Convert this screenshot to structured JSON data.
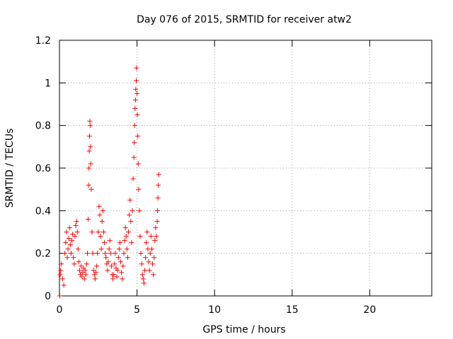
{
  "chart_data": {
    "type": "scatter",
    "title": "Day 076 of 2015, SRMTID for receiver atw2",
    "xlabel": "GPS time / hours",
    "ylabel": "SRMTID / TECUs",
    "xlim": [
      0,
      24
    ],
    "ylim": [
      0,
      1.2
    ],
    "xticks": [
      0,
      5,
      10,
      15,
      20
    ],
    "yticks": [
      0,
      0.2,
      0.4,
      0.6,
      0.8,
      1,
      1.2
    ],
    "xtick_labels": [
      "0",
      "5",
      "10",
      "15",
      "20"
    ],
    "ytick_labels": [
      "0",
      "0.2",
      "0.4",
      "0.6",
      "0.8",
      "1",
      "1.2"
    ],
    "grid": true,
    "marker": "+",
    "color": "#ff0000",
    "series": [
      {
        "name": "SRMTID",
        "x": [
          0.02,
          0.05,
          0.08,
          0.12,
          0.2,
          0.28,
          0.35,
          0.4,
          0.45,
          0.5,
          0.55,
          0.6,
          0.65,
          0.7,
          0.75,
          0.8,
          0.85,
          0.9,
          0.95,
          1.0,
          1.05,
          1.1,
          1.15,
          1.2,
          1.25,
          1.3,
          1.35,
          1.4,
          1.45,
          1.5,
          1.55,
          1.6,
          1.65,
          1.7,
          1.75,
          1.8,
          1.85,
          1.88,
          1.9,
          1.92,
          1.94,
          1.96,
          1.98,
          2.0,
          2.02,
          2.05,
          2.1,
          2.15,
          2.2,
          2.25,
          2.3,
          2.35,
          2.4,
          2.45,
          2.5,
          2.55,
          2.6,
          2.65,
          2.7,
          2.75,
          2.8,
          2.85,
          2.9,
          2.95,
          3.0,
          3.05,
          3.1,
          3.15,
          3.2,
          3.25,
          3.3,
          3.35,
          3.4,
          3.45,
          3.5,
          3.55,
          3.6,
          3.65,
          3.7,
          3.75,
          3.8,
          3.85,
          3.9,
          3.95,
          4.0,
          4.05,
          4.1,
          4.15,
          4.2,
          4.25,
          4.3,
          4.35,
          4.4,
          4.45,
          4.5,
          4.55,
          4.6,
          4.65,
          4.7,
          4.75,
          4.8,
          4.82,
          4.85,
          4.87,
          4.9,
          4.92,
          4.95,
          4.97,
          5.0,
          5.02,
          5.05,
          5.08,
          5.1,
          5.15,
          5.2,
          5.25,
          5.3,
          5.35,
          5.4,
          5.45,
          5.5,
          5.55,
          5.6,
          5.65,
          5.7,
          5.75,
          5.8,
          5.85,
          5.9,
          5.95,
          6.0,
          6.05,
          6.1,
          6.15,
          6.2,
          6.25,
          6.3,
          6.32,
          6.35,
          6.37,
          6.4
        ],
        "y": [
          0.0,
          0.1,
          0.12,
          0.15,
          0.08,
          0.05,
          0.2,
          0.25,
          0.3,
          0.18,
          0.22,
          0.27,
          0.32,
          0.24,
          0.2,
          0.26,
          0.29,
          0.18,
          0.15,
          0.28,
          0.33,
          0.35,
          0.3,
          0.22,
          0.16,
          0.12,
          0.1,
          0.14,
          0.09,
          0.11,
          0.13,
          0.08,
          0.12,
          0.1,
          0.15,
          0.2,
          0.36,
          0.52,
          0.6,
          0.68,
          0.75,
          0.82,
          0.8,
          0.7,
          0.62,
          0.5,
          0.3,
          0.2,
          0.12,
          0.1,
          0.08,
          0.11,
          0.14,
          0.2,
          0.3,
          0.42,
          0.38,
          0.28,
          0.22,
          0.35,
          0.4,
          0.3,
          0.25,
          0.2,
          0.18,
          0.15,
          0.12,
          0.16,
          0.22,
          0.26,
          0.2,
          0.14,
          0.1,
          0.08,
          0.1,
          0.15,
          0.2,
          0.13,
          0.09,
          0.12,
          0.18,
          0.22,
          0.25,
          0.16,
          0.11,
          0.08,
          0.14,
          0.2,
          0.26,
          0.32,
          0.28,
          0.22,
          0.18,
          0.3,
          0.38,
          0.45,
          0.35,
          0.25,
          0.4,
          0.55,
          0.65,
          0.72,
          0.8,
          0.88,
          0.92,
          0.97,
          1.01,
          1.07,
          0.95,
          0.85,
          0.75,
          0.62,
          0.5,
          0.4,
          0.28,
          0.2,
          0.15,
          0.1,
          0.08,
          0.06,
          0.12,
          0.18,
          0.25,
          0.3,
          0.22,
          0.16,
          0.12,
          0.2,
          0.28,
          0.22,
          0.15,
          0.1,
          0.18,
          0.26,
          0.32,
          0.28,
          0.35,
          0.4,
          0.46,
          0.52,
          0.57
        ]
      }
    ]
  }
}
